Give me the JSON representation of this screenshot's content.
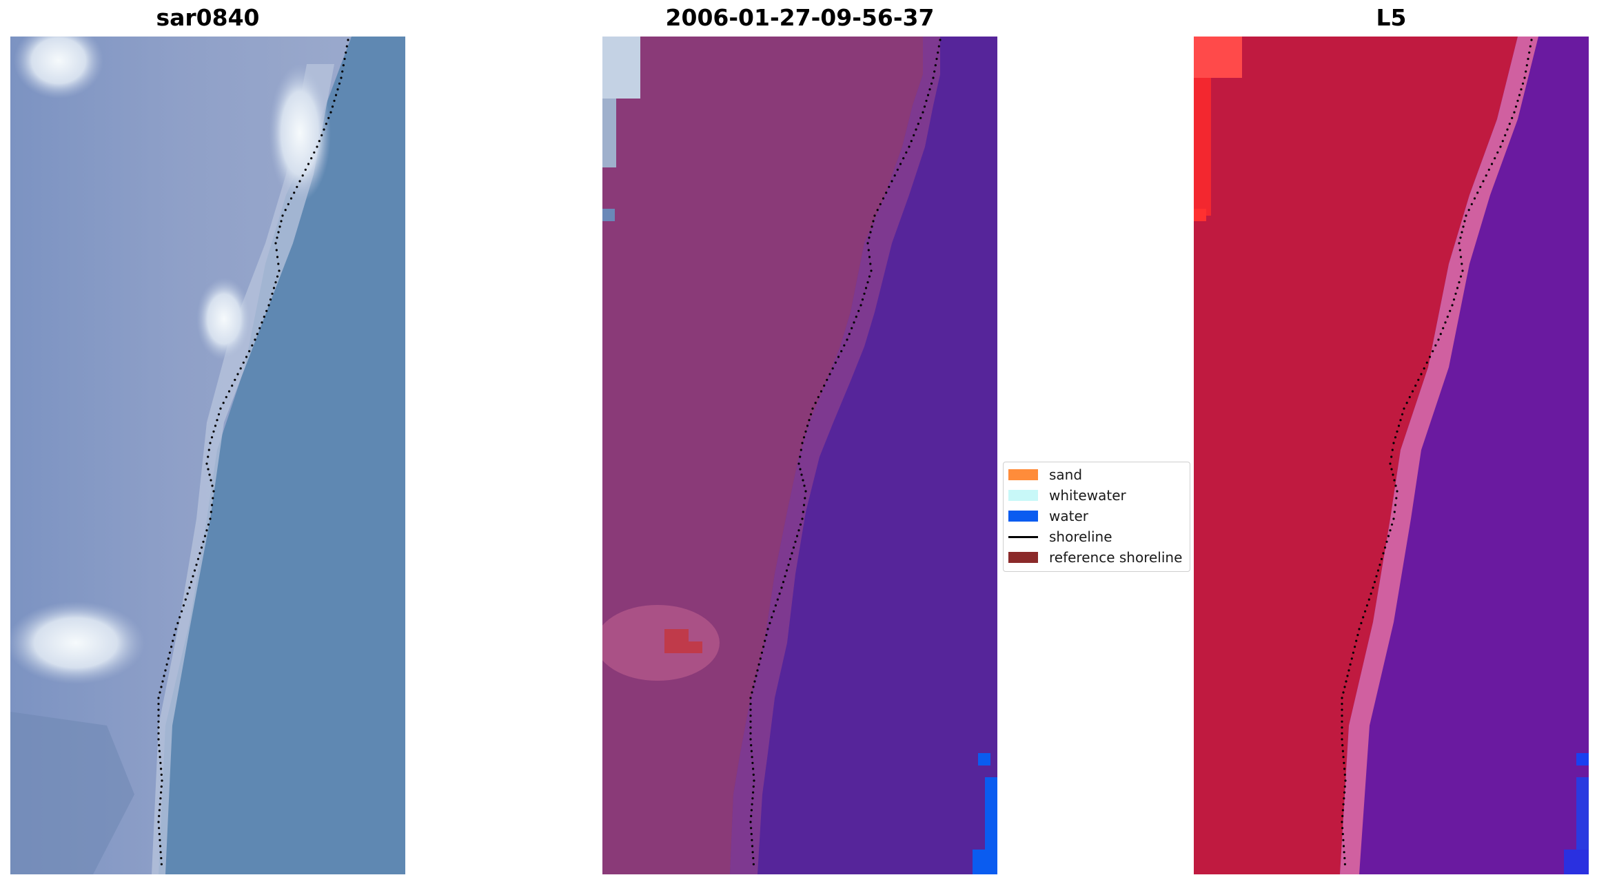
{
  "panels": [
    {
      "title": "sar0840",
      "kind": "rgb"
    },
    {
      "title": "2006-01-27-09-56-37",
      "kind": "classified"
    },
    {
      "title": "L5",
      "kind": "index"
    }
  ],
  "legend": {
    "items": [
      {
        "label": "sand",
        "color": "#ff8c3a",
        "type": "patch"
      },
      {
        "label": "whitewater",
        "color": "#c8f8f8",
        "type": "patch"
      },
      {
        "label": "water",
        "color": "#0a5cf0",
        "type": "patch"
      },
      {
        "label": "shoreline",
        "color": "#000000",
        "type": "line"
      },
      {
        "label": "reference shoreline",
        "color": "#8b2a2a",
        "type": "patch"
      }
    ]
  },
  "colors": {
    "rgb_land": "#8a9cc4",
    "rgb_water": "#5f88b2",
    "rgb_bright": "#e8eef6",
    "class_land": "#8a3a78",
    "class_water": "#56259a",
    "class_water_blue": "#0a5cf0",
    "class_sand_patch": "#c03a4a",
    "index_land": "#c01a40",
    "index_water": "#6a1aa0",
    "index_pink": "#d060a0",
    "shoreline": "#000000"
  }
}
